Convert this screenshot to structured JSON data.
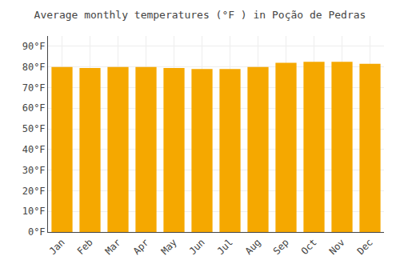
{
  "chart_data": {
    "type": "bar",
    "title": "Average monthly temperatures (°F ) in Poção de Pedras",
    "categories": [
      "Jan",
      "Feb",
      "Mar",
      "Apr",
      "May",
      "Jun",
      "Jul",
      "Aug",
      "Sep",
      "Oct",
      "Nov",
      "Dec"
    ],
    "values": [
      80,
      79.5,
      80,
      80,
      79.5,
      79,
      79,
      80,
      82,
      82.5,
      82.5,
      81.5
    ],
    "color": "#F5A800",
    "ylim": [
      0,
      95
    ],
    "yticks": [
      {
        "value": 0,
        "label": "0°F"
      },
      {
        "value": 10,
        "label": "10°F"
      },
      {
        "value": 20,
        "label": "20°F"
      },
      {
        "value": 30,
        "label": "30°F"
      },
      {
        "value": 40,
        "label": "40°F"
      },
      {
        "value": 50,
        "label": "50°F"
      },
      {
        "value": 60,
        "label": "60°F"
      },
      {
        "value": 70,
        "label": "70°F"
      },
      {
        "value": 80,
        "label": "80°F"
      },
      {
        "value": 90,
        "label": "90°F"
      }
    ],
    "grid": true
  }
}
